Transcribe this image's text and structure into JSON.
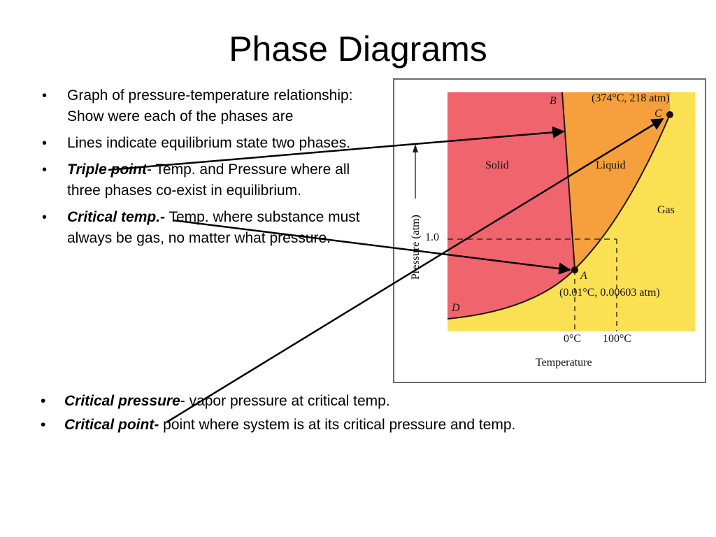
{
  "slide": {
    "title": "Phase Diagrams"
  },
  "bullets": [
    {
      "bold_italic": "",
      "text": "Graph of pressure-temperature relationship: Show were each of the phases are"
    },
    {
      "bold_italic": "",
      "text": "Lines indicate equilibrium state two phases."
    },
    {
      "bold_italic": "Triple point",
      "text": "- Temp. and Pressure where all three phases co-exist in equilibrium."
    },
    {
      "bold_italic": "Critical temp.-",
      "text": " Temp. where substance must always be gas, no matter what pressure."
    }
  ],
  "bottom_bullets": [
    {
      "bold_italic": "Critical pressure",
      "text": "- vapor pressure at critical temp."
    },
    {
      "bold_italic": "Critical point-",
      "text": " point where system is at its critical pressure and temp."
    }
  ],
  "bullet_symbol": "•",
  "diagram": {
    "regions": {
      "solid": "Solid",
      "liquid": "Liquid",
      "gas": "Gas"
    },
    "points": {
      "A": "A",
      "B": "B",
      "C": "C",
      "D": "D",
      "critical_label": "(374°C, 218 atm)",
      "triple_label": "(0.01°C, 0.00603 atm)"
    },
    "axes": {
      "ylabel": "Pressure (atm)",
      "xlabel": "Temperature",
      "y_tick": "1.0",
      "x_ticks": [
        "0°C",
        "100°C"
      ]
    },
    "colors": {
      "solid": "#f0646e",
      "liquid": "#f5a03c",
      "gas": "#fae052",
      "lines": "#1a1a1a"
    }
  }
}
